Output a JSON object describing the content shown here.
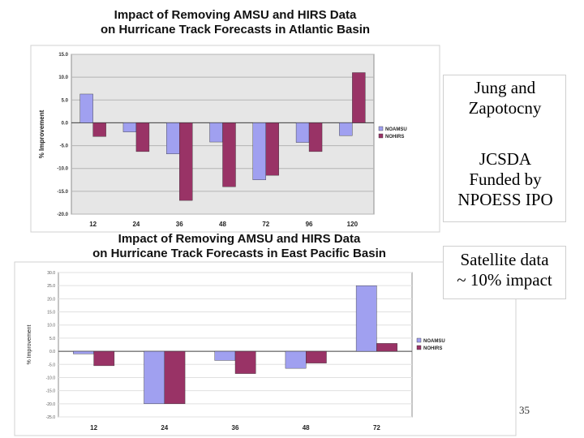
{
  "chart_data": [
    {
      "type": "bar",
      "title": "Impact of Removing AMSU and HIRS Data on Hurricane Track Forecasts in Atlantic Basin",
      "title_lines": [
        "Impact of Removing AMSU and HIRS Data",
        "on Hurricane Track Forecasts in Atlantic Basin"
      ],
      "ylabel": "% Improvement",
      "xlabel": "",
      "ylim": [
        -20,
        15
      ],
      "yticks": [
        -20,
        -15,
        -10,
        -5,
        0,
        5,
        10,
        15
      ],
      "ytick_labels": [
        "-20.0",
        "-15.0",
        "-10.0",
        "-5.0",
        "0.0",
        "5.0",
        "10.0",
        "15.0"
      ],
      "grid": true,
      "legend": "right",
      "categories": [
        "12",
        "24",
        "36",
        "48",
        "72",
        "96",
        "120"
      ],
      "series": [
        {
          "name": "NOAMSU",
          "color": "#a0a0f0",
          "values": [
            6.3,
            -2.0,
            -6.8,
            -4.2,
            -12.5,
            -4.3,
            -2.8
          ]
        },
        {
          "name": "NOHIRS",
          "color": "#993366",
          "values": [
            -3.0,
            -6.3,
            -17.0,
            -14.0,
            -11.5,
            -6.3,
            11.0
          ]
        }
      ]
    },
    {
      "type": "bar",
      "title": "Impact of Removing AMSU and HIRS Data on Hurricane Track Forecasts in East Pacific Basin",
      "title_lines": [
        "Impact of Removing AMSU and HIRS Data",
        "on Hurricane Track Forecasts in East Pacific Basin"
      ],
      "ylabel": "% Improvement",
      "xlabel": "",
      "ylim": [
        -25,
        30
      ],
      "yticks": [
        -25,
        -20,
        -15,
        -10,
        -5,
        0,
        5,
        10,
        15,
        20,
        25,
        30
      ],
      "ytick_labels": [
        "-25.0",
        "-20.0",
        "-15.0",
        "-10.0",
        "-5.0",
        "0.0",
        "5.0",
        "10.0",
        "15.0",
        "20.0",
        "25.0",
        "30.0"
      ],
      "grid": true,
      "legend": "right",
      "categories": [
        "12",
        "24",
        "36",
        "48",
        "72"
      ],
      "series": [
        {
          "name": "NOAMSU",
          "color": "#a0a0f0",
          "values": [
            -1.0,
            -20.0,
            -3.5,
            -6.5,
            25.0
          ]
        },
        {
          "name": "NOHIRS",
          "color": "#993366",
          "values": [
            -5.5,
            -20.0,
            -8.5,
            -4.5,
            3.0
          ]
        }
      ]
    }
  ],
  "notes": {
    "box1_line1": "Jung and",
    "box1_line2": "Zapotocny",
    "box2_line1": "JCSDA",
    "box2_line2": "Funded by",
    "box2_line3": "NPOESS IPO",
    "box3_line1": "Satellite data",
    "box3_line2": "~ 10% impact"
  },
  "page_number": "35"
}
